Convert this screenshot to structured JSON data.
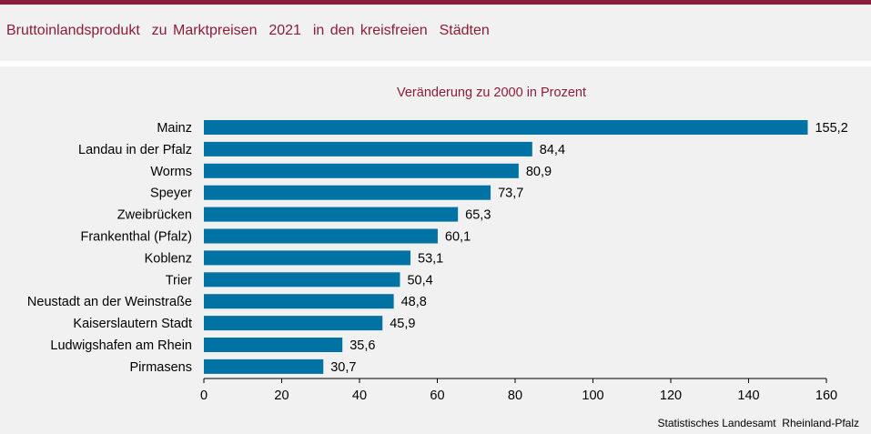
{
  "header": {
    "title": "Bruttoinlandsprodukt  zu Marktpreisen  2021  in den kreisfreien  Städten"
  },
  "colors": {
    "accent": "#8c1d3a",
    "bar": "#0072a3",
    "background": "#f0f1f0"
  },
  "chart_data": {
    "type": "bar",
    "orientation": "horizontal",
    "title": "Veränderung zu 2000 in Prozent",
    "categories": [
      "Mainz",
      "Landau in der Pfalz",
      "Worms",
      "Speyer",
      "Zweibrücken",
      "Frankenthal (Pfalz)",
      "Koblenz",
      "Trier",
      "Neustadt an der Weinstraße",
      "Kaiserslautern Stadt",
      "Ludwigshafen am Rhein",
      "Pirmasens"
    ],
    "values": [
      155.2,
      84.4,
      80.9,
      73.7,
      65.3,
      60.1,
      53.1,
      50.4,
      48.8,
      45.9,
      35.6,
      30.7
    ],
    "value_labels": [
      "155,2",
      "84,4",
      "80,9",
      "73,7",
      "65,3",
      "60,1",
      "53,1",
      "50,4",
      "48,8",
      "45,9",
      "35,6",
      "30,7"
    ],
    "xlim": [
      0,
      160
    ],
    "xticks": [
      0,
      20,
      40,
      60,
      80,
      100,
      120,
      140,
      160
    ],
    "xlabel": "",
    "ylabel": ""
  },
  "source": "Statistisches Landesamt  Rheinland-Pfalz"
}
